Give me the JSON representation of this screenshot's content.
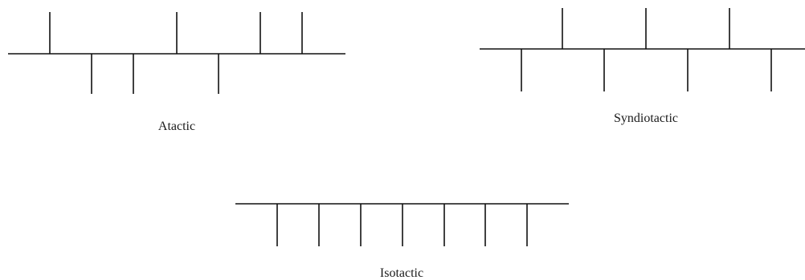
{
  "figure": {
    "line_color": "#111111",
    "background_color": "#ffffff",
    "chains": [
      {
        "id": "atactic",
        "label": "Atactic",
        "side_groups": [
          "up",
          "down",
          "down",
          "up",
          "down",
          "up",
          "up"
        ]
      },
      {
        "id": "syndiotactic",
        "label": "Syndiotactic",
        "side_groups": [
          "down",
          "up",
          "down",
          "up",
          "down",
          "up",
          "down"
        ]
      },
      {
        "id": "isotactic",
        "label": "Isotactic",
        "side_groups": [
          "down",
          "down",
          "down",
          "down",
          "down",
          "down",
          "down"
        ]
      }
    ]
  }
}
